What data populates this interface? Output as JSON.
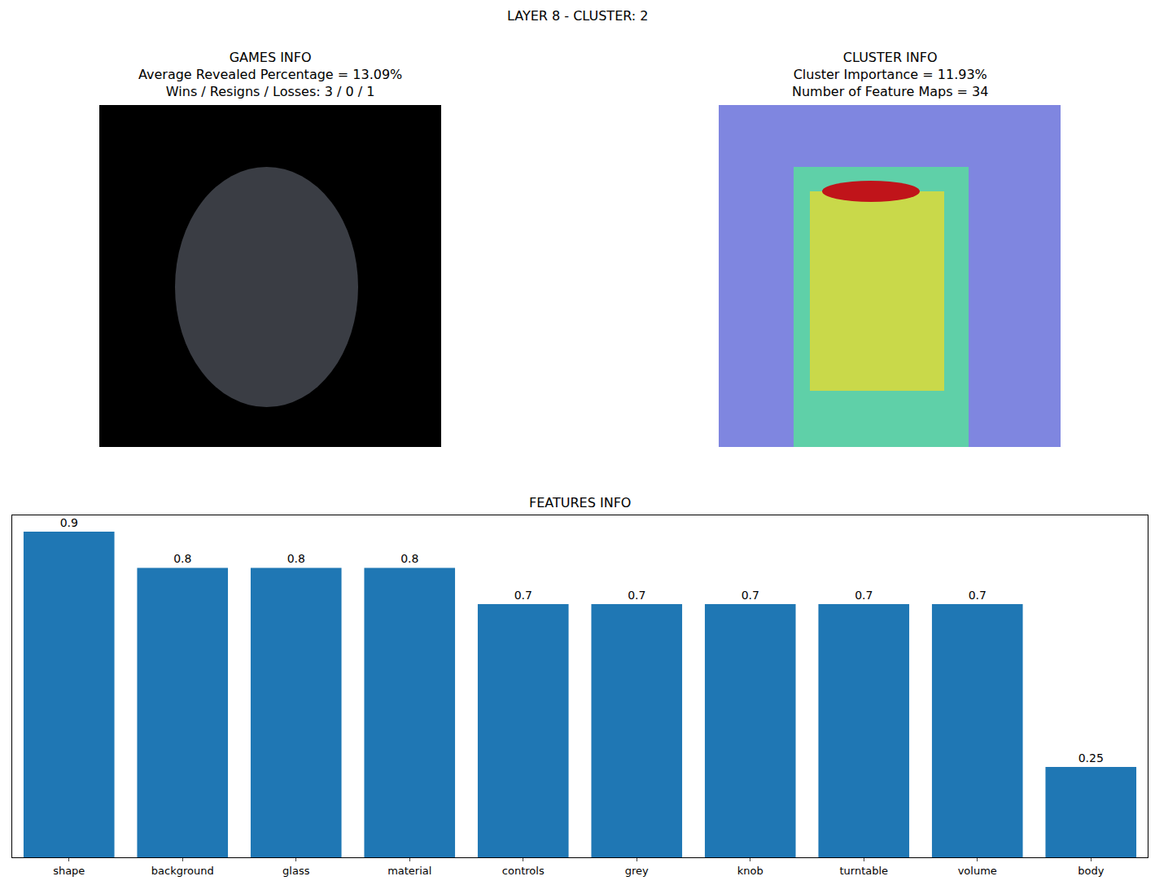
{
  "title": "LAYER 8 - CLUSTER: 2",
  "panels": [
    {
      "title": [
        "GAMES INFO",
        "Average Revealed Percentage = 13.09%",
        "Wins / Resigns / Losses: 3 / 0 / 1"
      ]
    },
    {
      "title": [
        "CLUSTER INFO",
        "Cluster Importance = 11.93%",
        "Number of Feature Maps = 34"
      ]
    }
  ],
  "chart_data": {
    "type": "bar",
    "title": "FEATURES INFO",
    "categories": [
      "shape",
      "background",
      "glass",
      "material",
      "controls",
      "grey",
      "knob",
      "turntable",
      "volume",
      "body"
    ],
    "values": [
      0.9,
      0.8,
      0.8,
      0.8,
      0.7,
      0.7,
      0.7,
      0.7,
      0.7,
      0.25
    ],
    "color": "#1f77b4",
    "ylim": [
      0,
      0.945
    ],
    "data_labels": true,
    "tick_labels": "x"
  }
}
